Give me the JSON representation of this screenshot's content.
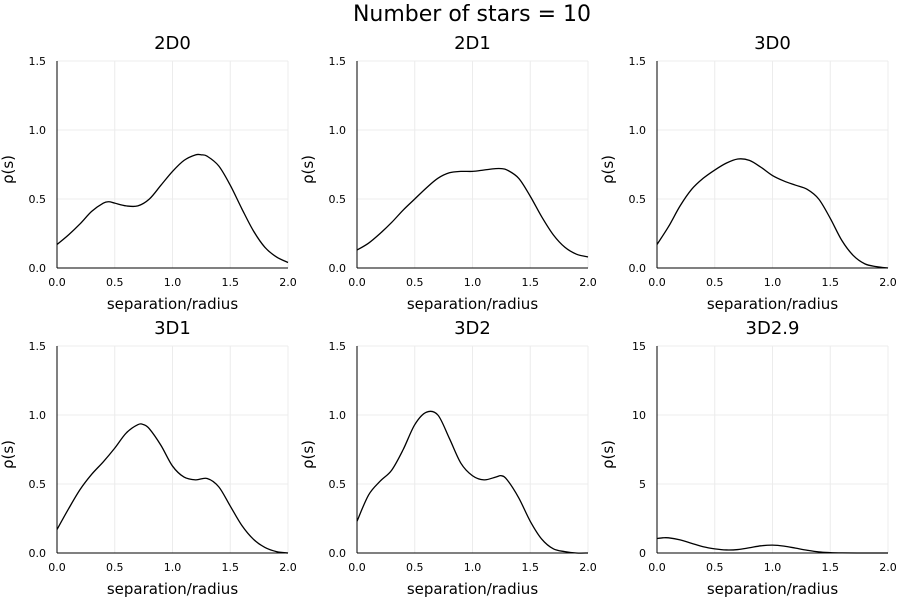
{
  "figure": {
    "title": "Number of stars = 10"
  },
  "chart_data": [
    {
      "type": "line",
      "title": "2D0",
      "xlabel": "separation/radius",
      "ylabel": "ρ(s)",
      "xlim": [
        0,
        2
      ],
      "ylim": [
        0,
        1.5
      ],
      "grid": true,
      "xticks": [
        0,
        0.5,
        1,
        1.5,
        2
      ],
      "xtick_labels": [
        "0.0",
        "0.5",
        "1.0",
        "1.5",
        "2.0"
      ],
      "yticks": [
        0,
        0.5,
        1,
        1.5
      ],
      "ytick_labels": [
        "0.0",
        "0.5",
        "1.0",
        "1.5"
      ],
      "series": [
        {
          "x": [
            0,
            0.1,
            0.2,
            0.3,
            0.4,
            0.45,
            0.5,
            0.6,
            0.7,
            0.8,
            0.9,
            1.0,
            1.1,
            1.2,
            1.25,
            1.3,
            1.4,
            1.5,
            1.6,
            1.7,
            1.8,
            1.9,
            2.0
          ],
          "y": [
            0.17,
            0.24,
            0.32,
            0.41,
            0.47,
            0.48,
            0.47,
            0.45,
            0.45,
            0.5,
            0.6,
            0.7,
            0.78,
            0.82,
            0.82,
            0.81,
            0.74,
            0.6,
            0.43,
            0.27,
            0.15,
            0.08,
            0.04
          ]
        }
      ]
    },
    {
      "type": "line",
      "title": "2D1",
      "xlabel": "separation/radius",
      "ylabel": "ρ(s)",
      "xlim": [
        0,
        2
      ],
      "ylim": [
        0,
        1.5
      ],
      "grid": true,
      "xticks": [
        0,
        0.5,
        1,
        1.5,
        2
      ],
      "xtick_labels": [
        "0.0",
        "0.5",
        "1.0",
        "1.5",
        "2.0"
      ],
      "yticks": [
        0,
        0.5,
        1,
        1.5
      ],
      "ytick_labels": [
        "0.0",
        "0.5",
        "1.0",
        "1.5"
      ],
      "series": [
        {
          "x": [
            0,
            0.1,
            0.2,
            0.3,
            0.4,
            0.5,
            0.6,
            0.7,
            0.8,
            0.9,
            1.0,
            1.1,
            1.2,
            1.25,
            1.3,
            1.4,
            1.5,
            1.6,
            1.7,
            1.8,
            1.9,
            2.0
          ],
          "y": [
            0.13,
            0.18,
            0.25,
            0.33,
            0.42,
            0.5,
            0.58,
            0.65,
            0.69,
            0.7,
            0.7,
            0.71,
            0.72,
            0.72,
            0.71,
            0.65,
            0.52,
            0.37,
            0.24,
            0.15,
            0.1,
            0.08
          ]
        }
      ]
    },
    {
      "type": "line",
      "title": "3D0",
      "xlabel": "separation/radius",
      "ylabel": "ρ(s)",
      "xlim": [
        0,
        2
      ],
      "ylim": [
        0,
        1.5
      ],
      "grid": true,
      "xticks": [
        0,
        0.5,
        1,
        1.5,
        2
      ],
      "xtick_labels": [
        "0.0",
        "0.5",
        "1.0",
        "1.5",
        "2.0"
      ],
      "yticks": [
        0,
        0.5,
        1,
        1.5
      ],
      "ytick_labels": [
        "0.0",
        "0.5",
        "1.0",
        "1.5"
      ],
      "series": [
        {
          "x": [
            0,
            0.1,
            0.2,
            0.3,
            0.4,
            0.5,
            0.6,
            0.7,
            0.8,
            0.9,
            1.0,
            1.1,
            1.2,
            1.3,
            1.4,
            1.5,
            1.6,
            1.7,
            1.8,
            1.9,
            2.0
          ],
          "y": [
            0.17,
            0.3,
            0.45,
            0.57,
            0.65,
            0.71,
            0.76,
            0.79,
            0.78,
            0.73,
            0.67,
            0.63,
            0.6,
            0.57,
            0.5,
            0.36,
            0.2,
            0.09,
            0.03,
            0.01,
            0.0
          ]
        }
      ]
    },
    {
      "type": "line",
      "title": "3D1",
      "xlabel": "separation/radius",
      "ylabel": "ρ(s)",
      "xlim": [
        0,
        2
      ],
      "ylim": [
        0,
        1.5
      ],
      "grid": true,
      "xticks": [
        0,
        0.5,
        1,
        1.5,
        2
      ],
      "xtick_labels": [
        "0.0",
        "0.5",
        "1.0",
        "1.5",
        "2.0"
      ],
      "yticks": [
        0,
        0.5,
        1,
        1.5
      ],
      "ytick_labels": [
        "0.0",
        "0.5",
        "1.0",
        "1.5"
      ],
      "series": [
        {
          "x": [
            0,
            0.1,
            0.2,
            0.3,
            0.4,
            0.5,
            0.6,
            0.7,
            0.75,
            0.8,
            0.9,
            1.0,
            1.1,
            1.2,
            1.3,
            1.4,
            1.5,
            1.6,
            1.7,
            1.8,
            1.9,
            2.0
          ],
          "y": [
            0.17,
            0.32,
            0.46,
            0.57,
            0.66,
            0.76,
            0.87,
            0.93,
            0.93,
            0.9,
            0.78,
            0.63,
            0.55,
            0.53,
            0.54,
            0.48,
            0.34,
            0.2,
            0.1,
            0.04,
            0.01,
            0.0
          ]
        }
      ]
    },
    {
      "type": "line",
      "title": "3D2",
      "xlabel": "separation/radius",
      "ylabel": "ρ(s)",
      "xlim": [
        0,
        2
      ],
      "ylim": [
        0,
        1.5
      ],
      "grid": true,
      "xticks": [
        0,
        0.5,
        1,
        1.5,
        2
      ],
      "xtick_labels": [
        "0.0",
        "0.5",
        "1.0",
        "1.5",
        "2.0"
      ],
      "yticks": [
        0,
        0.5,
        1,
        1.5
      ],
      "ytick_labels": [
        "0.0",
        "0.5",
        "1.0",
        "1.5"
      ],
      "series": [
        {
          "x": [
            0,
            0.1,
            0.2,
            0.3,
            0.4,
            0.5,
            0.6,
            0.7,
            0.8,
            0.9,
            1.0,
            1.1,
            1.2,
            1.25,
            1.3,
            1.4,
            1.5,
            1.6,
            1.7,
            1.8,
            1.9,
            2.0
          ],
          "y": [
            0.23,
            0.42,
            0.52,
            0.6,
            0.75,
            0.93,
            1.02,
            1.0,
            0.83,
            0.65,
            0.56,
            0.53,
            0.55,
            0.56,
            0.53,
            0.4,
            0.23,
            0.1,
            0.03,
            0.01,
            0.0,
            0.0
          ]
        }
      ]
    },
    {
      "type": "line",
      "title": "3D2.9",
      "xlabel": "separation/radius",
      "ylabel": "ρ(s)",
      "xlim": [
        0,
        2
      ],
      "ylim": [
        0,
        15
      ],
      "grid": true,
      "xticks": [
        0,
        0.5,
        1,
        1.5,
        2
      ],
      "xtick_labels": [
        "0.0",
        "0.5",
        "1.0",
        "1.5",
        "2.0"
      ],
      "yticks": [
        0,
        5,
        10,
        15
      ],
      "ytick_labels": [
        "0",
        "5",
        "10",
        "15"
      ],
      "series": [
        {
          "x": [
            0,
            0.05,
            0.1,
            0.2,
            0.3,
            0.4,
            0.5,
            0.6,
            0.7,
            0.8,
            0.9,
            1.0,
            1.1,
            1.2,
            1.3,
            1.4,
            1.5,
            1.6,
            1.8,
            2.0
          ],
          "y": [
            1.05,
            1.1,
            1.1,
            0.95,
            0.7,
            0.45,
            0.3,
            0.22,
            0.25,
            0.38,
            0.52,
            0.57,
            0.5,
            0.35,
            0.2,
            0.08,
            0.03,
            0.01,
            0.0,
            0.0
          ]
        }
      ]
    }
  ]
}
